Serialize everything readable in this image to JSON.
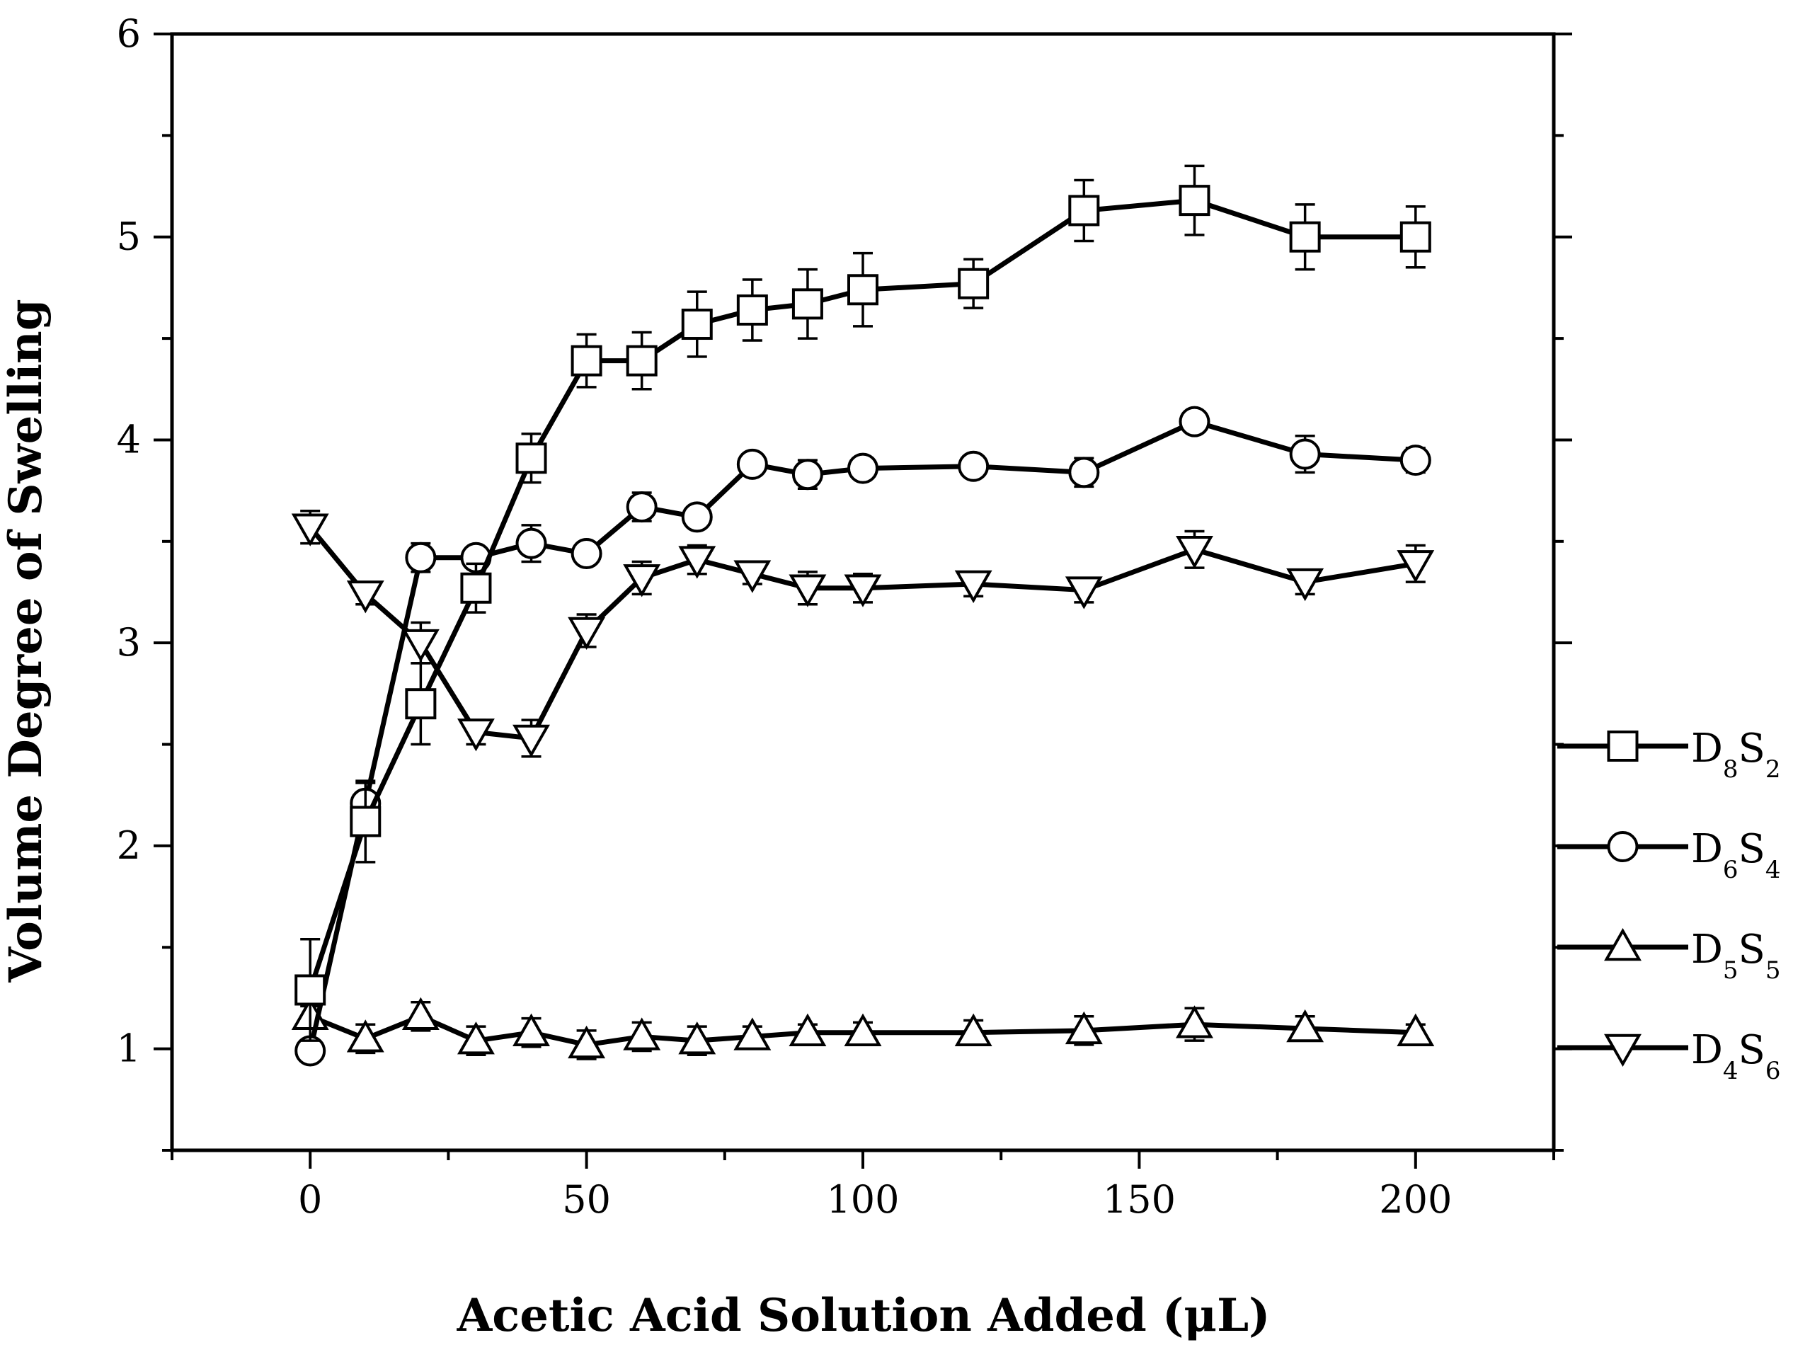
{
  "chart_data": {
    "type": "line",
    "title": "",
    "xlabel": "Acetic Acid Solution Added (μL)",
    "ylabel": "Volume Degree of Swelling",
    "xlim": [
      -25,
      225
    ],
    "ylim": [
      0.5,
      6
    ],
    "xticks": [
      0,
      50,
      100,
      150,
      200
    ],
    "yticks": [
      1,
      2,
      3,
      4,
      5,
      6
    ],
    "grid": false,
    "legend_position": "right",
    "series": [
      {
        "name": "D8S2",
        "label_main": [
          "D",
          "S"
        ],
        "label_sub": [
          "8",
          "2"
        ],
        "marker": "square",
        "x": [
          0,
          10,
          20,
          30,
          40,
          50,
          60,
          70,
          80,
          90,
          100,
          120,
          140,
          160,
          180,
          200
        ],
        "y": [
          1.29,
          2.12,
          2.7,
          3.27,
          3.91,
          4.39,
          4.39,
          4.57,
          4.64,
          4.67,
          4.74,
          4.77,
          5.13,
          5.18,
          5.0,
          5.0
        ],
        "err": [
          0.25,
          0.2,
          0.2,
          0.12,
          0.12,
          0.13,
          0.14,
          0.16,
          0.15,
          0.17,
          0.18,
          0.12,
          0.15,
          0.17,
          0.16,
          0.15
        ]
      },
      {
        "name": "D6S4",
        "label_main": [
          "D",
          "S"
        ],
        "label_sub": [
          "6",
          "4"
        ],
        "marker": "circle",
        "x": [
          0,
          10,
          20,
          30,
          40,
          50,
          60,
          70,
          80,
          90,
          100,
          120,
          140,
          160,
          180,
          200
        ],
        "y": [
          0.99,
          2.21,
          3.42,
          3.42,
          3.49,
          3.44,
          3.67,
          3.62,
          3.88,
          3.83,
          3.86,
          3.87,
          3.84,
          4.09,
          3.93,
          3.9
        ],
        "err": [
          0.03,
          0.1,
          0.07,
          0.05,
          0.09,
          0.05,
          0.07,
          0.05,
          0.05,
          0.07,
          0.05,
          0.04,
          0.07,
          0.05,
          0.09,
          0.06
        ]
      },
      {
        "name": "D5S5",
        "label_main": [
          "D",
          "S"
        ],
        "label_sub": [
          "5",
          "5"
        ],
        "marker": "triangle-up",
        "x": [
          0,
          10,
          20,
          30,
          40,
          50,
          60,
          70,
          80,
          90,
          100,
          120,
          140,
          160,
          180,
          200
        ],
        "y": [
          1.16,
          1.05,
          1.16,
          1.04,
          1.08,
          1.02,
          1.06,
          1.04,
          1.06,
          1.08,
          1.08,
          1.08,
          1.09,
          1.12,
          1.1,
          1.08
        ],
        "err": [
          0.05,
          0.07,
          0.07,
          0.07,
          0.07,
          0.07,
          0.07,
          0.07,
          0.05,
          0.04,
          0.05,
          0.06,
          0.07,
          0.08,
          0.06,
          0.04
        ]
      },
      {
        "name": "D4S6",
        "label_main": [
          "D",
          "S"
        ],
        "label_sub": [
          "4",
          "6"
        ],
        "marker": "triangle-down",
        "x": [
          0,
          10,
          20,
          30,
          40,
          50,
          60,
          70,
          80,
          90,
          100,
          120,
          140,
          160,
          180,
          200
        ],
        "y": [
          3.57,
          3.24,
          3.0,
          2.56,
          2.53,
          3.06,
          3.32,
          3.41,
          3.34,
          3.27,
          3.27,
          3.29,
          3.26,
          3.46,
          3.3,
          3.39
        ],
        "err": [
          0.08,
          0.05,
          0.1,
          0.06,
          0.09,
          0.08,
          0.08,
          0.07,
          0.05,
          0.08,
          0.07,
          0.06,
          0.06,
          0.09,
          0.06,
          0.09
        ]
      }
    ]
  }
}
